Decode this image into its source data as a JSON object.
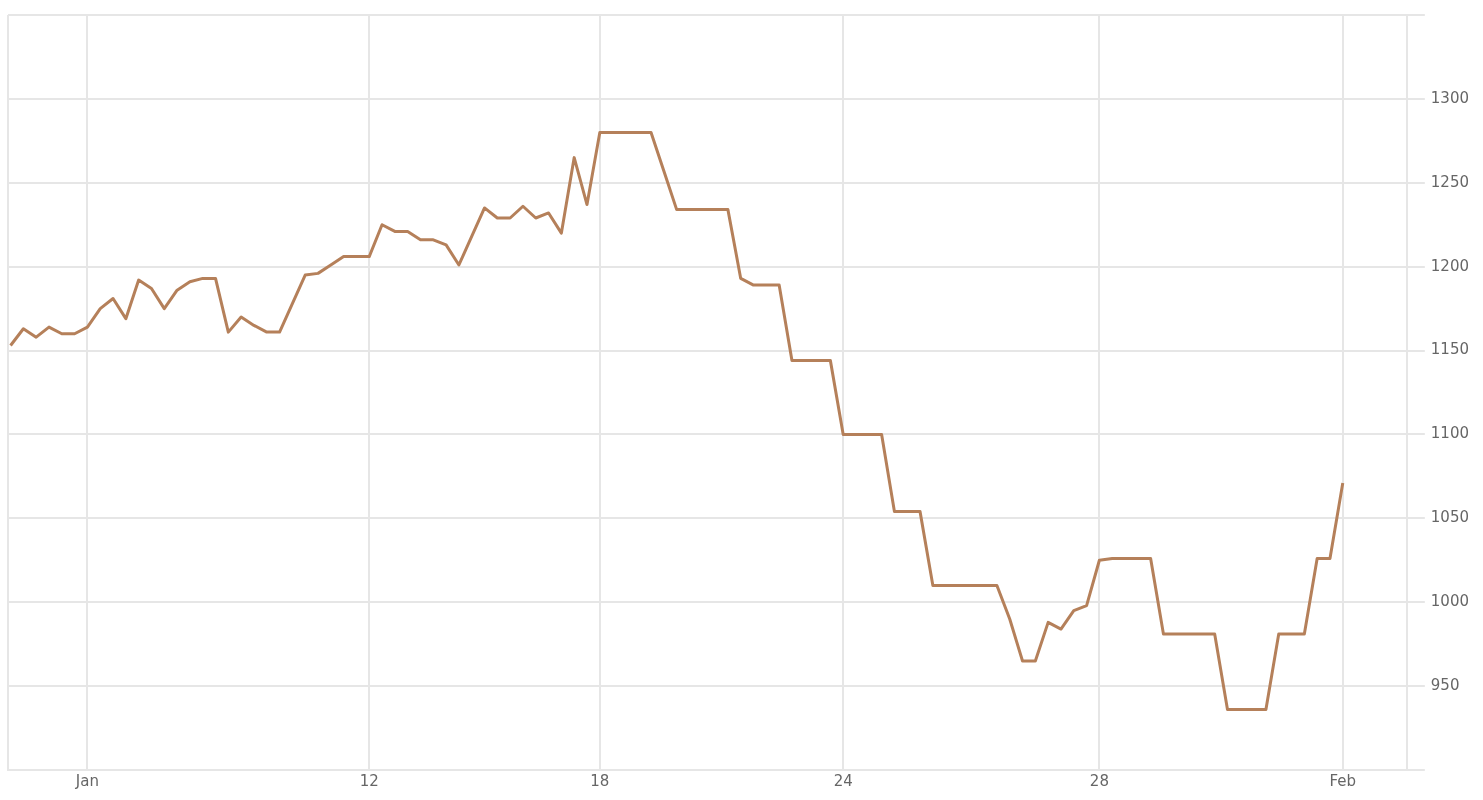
{
  "chart_data": {
    "type": "line",
    "categories": [
      null,
      null,
      null,
      null,
      null,
      null,
      "Jan",
      null,
      null,
      null,
      null,
      null,
      null,
      null,
      null,
      null,
      null,
      null,
      null,
      null,
      null,
      null,
      null,
      null,
      null,
      null,
      null,
      null,
      "12",
      null,
      null,
      null,
      null,
      null,
      null,
      null,
      null,
      null,
      null,
      null,
      null,
      null,
      null,
      null,
      null,
      null,
      "18",
      null,
      null,
      null,
      null,
      null,
      null,
      null,
      null,
      null,
      null,
      null,
      null,
      null,
      null,
      null,
      null,
      null,
      null,
      "24",
      null,
      null,
      null,
      null,
      null,
      null,
      null,
      null,
      null,
      null,
      null,
      null,
      null,
      null,
      null,
      null,
      null,
      null,
      null,
      "28",
      null,
      null,
      null,
      null,
      null,
      null,
      null,
      null,
      null,
      null,
      null,
      null,
      null,
      null,
      null,
      null,
      null,
      null,
      "Feb"
    ],
    "series": [
      {
        "color": "#b5805a",
        "values": [
          1153,
          1163,
          1158,
          1164,
          1160,
          1160,
          1164,
          1175,
          1181,
          1169,
          1192,
          1187,
          1175,
          1186,
          1191,
          1193,
          1193,
          1161,
          1170,
          1165,
          1161,
          1161,
          1178,
          1195,
          1196,
          1201,
          1206,
          1206,
          1206,
          1225,
          1221,
          1221,
          1216,
          1216,
          1213,
          1201,
          1218,
          1235,
          1229,
          1229,
          1236,
          1229,
          1232,
          1220,
          1265,
          1237,
          1280,
          1280,
          1280,
          1280,
          1280,
          1257,
          1234,
          1234,
          1234,
          1234,
          1234,
          1193,
          1189,
          1189,
          1189,
          1144,
          1144,
          1144,
          1144,
          1100,
          1100,
          1100,
          1100,
          1054,
          1054,
          1054,
          1010,
          1010,
          1010,
          1010,
          1010,
          1010,
          990,
          965,
          965,
          988,
          984,
          995,
          998,
          1025,
          1026,
          1026,
          1026,
          1026,
          981,
          981,
          981,
          981,
          981,
          936,
          936,
          936,
          936,
          981,
          981,
          981,
          1026,
          1026,
          1071
        ]
      }
    ],
    "ylim": [
      900,
      1350
    ],
    "yticks": [
      {
        "value": 900,
        "label": null
      },
      950,
      1000,
      1050,
      1100,
      1150,
      1200,
      1250,
      1300,
      {
        "value": 1350,
        "label": null
      }
    ],
    "grid": true,
    "legend": false,
    "marker": "none",
    "line_style": "solid"
  }
}
